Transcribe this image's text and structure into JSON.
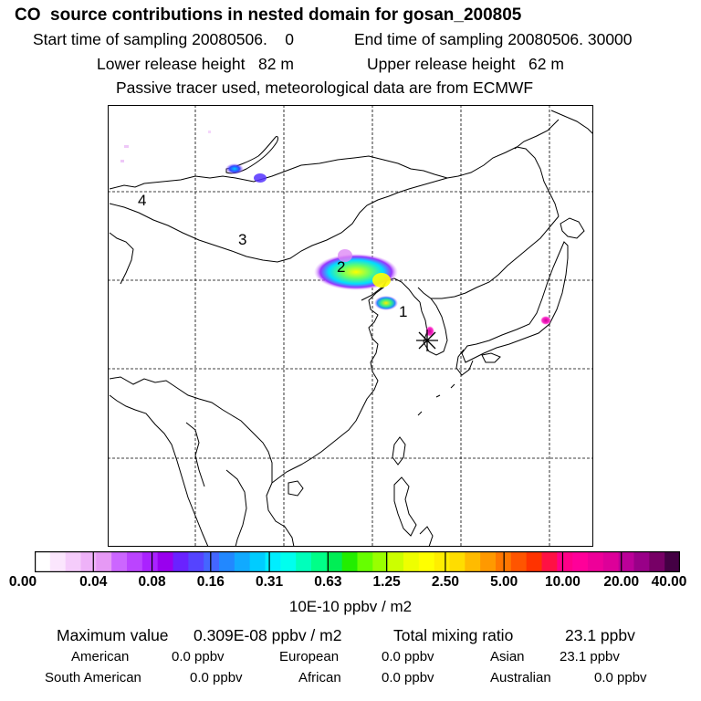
{
  "header": {
    "title": "CO  source contributions in nested domain for gosan_200805",
    "start": "Start time of sampling 20080506.    0",
    "end": "End time of sampling 20080506. 30000",
    "lower": "Lower release height   82 m",
    "upper": "Upper release height   62 m",
    "note": "Passive tracer used, meteorological data are from ECMWF"
  },
  "map": {
    "region_labels": [
      "1",
      "2",
      "3",
      "4"
    ],
    "marker": "receptor-star"
  },
  "colorbar": {
    "colors": [
      "#ffffff",
      "#fbe6fd",
      "#f5ccfb",
      "#eeb2f8",
      "#e699f5",
      "#cc66ff",
      "#bb44ff",
      "#aa22ff",
      "#9900ee",
      "#6a22ff",
      "#5544ff",
      "#4466ff",
      "#2288ff",
      "#11aaff",
      "#00ccff",
      "#00eeff",
      "#00ffee",
      "#00ffbb",
      "#00ff88",
      "#00ee55",
      "#22ee00",
      "#66ff00",
      "#99ff00",
      "#ccff00",
      "#eeff00",
      "#ffff00",
      "#ffee00",
      "#ffdd00",
      "#ffbb00",
      "#ff9900",
      "#ff7700",
      "#ff5500",
      "#ff3300",
      "#ff1144",
      "#ff0088",
      "#ff0099",
      "#ee0099",
      "#dd0099",
      "#bb0099",
      "#990088",
      "#770066",
      "#440044"
    ],
    "ticks": [
      "0.00",
      "0.04",
      "0.08",
      "0.16",
      "0.31",
      "0.63",
      "1.25",
      "2.50",
      "5.00",
      "10.00",
      "20.00",
      "40.00"
    ],
    "unit": "10E-10 ppbv / m2"
  },
  "summary": {
    "max_label": "Maximum value",
    "max_value": "0.309E-08 ppbv / m2",
    "total_label": "Total mixing ratio",
    "total_value": "23.1 ppbv",
    "regions": [
      {
        "name": "American",
        "value": "0.0 ppbv"
      },
      {
        "name": "European",
        "value": "0.0 ppbv"
      },
      {
        "name": "Asian",
        "value": "23.1 ppbv"
      },
      {
        "name": "South American",
        "value": "0.0 ppbv"
      },
      {
        "name": "African",
        "value": "0.0 ppbv"
      },
      {
        "name": "Australian",
        "value": "0.0 ppbv"
      }
    ]
  }
}
